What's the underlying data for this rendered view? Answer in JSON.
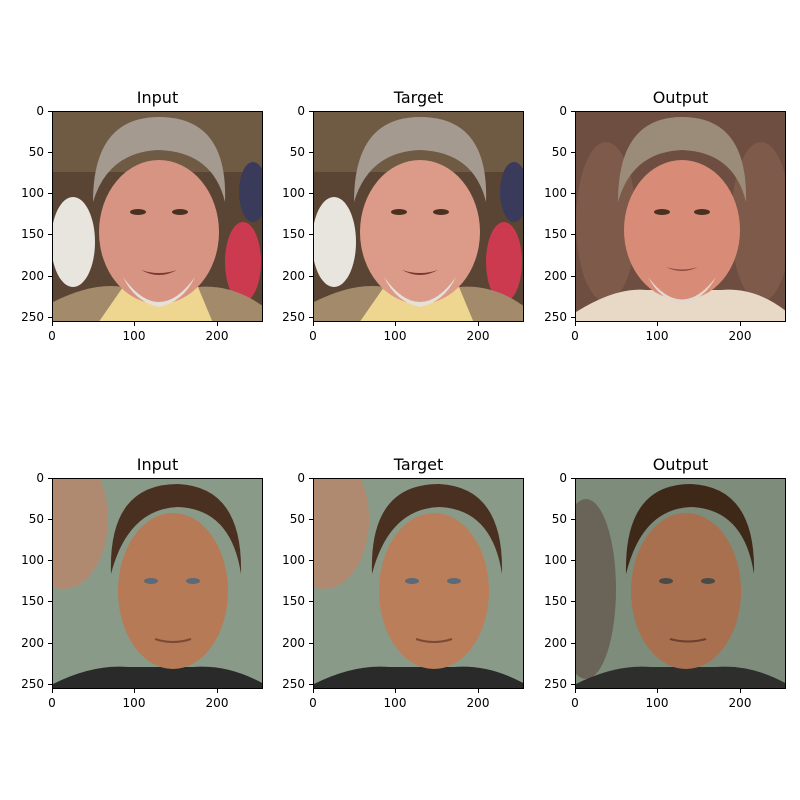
{
  "rows": [
    {
      "panels": [
        {
          "title": "Input",
          "scene": "older man with gray hair and white goatee at outdoor crowd"
        },
        {
          "title": "Target",
          "scene": "older man with gray hair and white goatee at outdoor crowd"
        },
        {
          "title": "Output",
          "scene": "older man with gray hair and white goatee, blurred brown background"
        }
      ]
    },
    {
      "panels": [
        {
          "title": "Input",
          "scene": "middle-aged man with brown hair against teal background"
        },
        {
          "title": "Target",
          "scene": "middle-aged man with brown hair against teal background"
        },
        {
          "title": "Output",
          "scene": "middle-aged man with brown hair, smoothed teal background"
        }
      ]
    }
  ],
  "axes": {
    "x_ticks": [
      "0",
      "100",
      "200"
    ],
    "y_ticks": [
      "0",
      "50",
      "100",
      "150",
      "200",
      "250"
    ],
    "range": [
      0,
      256
    ]
  },
  "colors": {
    "crowd_bg": "#5a4535",
    "brown_bg": "#6e4e40",
    "teal_bg": "#8a9a88",
    "gray_hair": "#a49a90",
    "brown_hair": "#4a3020",
    "skin_pink": "#d89482",
    "skin_tan": "#b67a56",
    "jacket": "#a28a6a",
    "shirt": "#eed690",
    "dark_shirt": "#2a2a2a"
  }
}
